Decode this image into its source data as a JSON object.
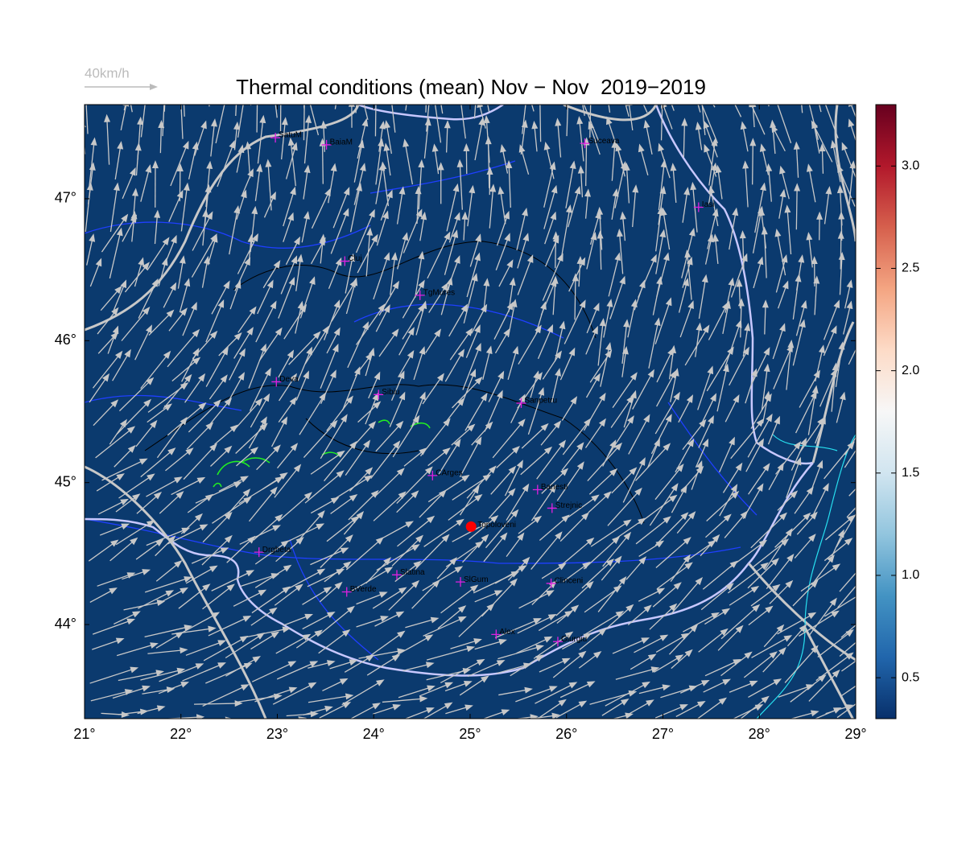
{
  "map": {
    "title": "Thermal conditions (mean) Nov − Nov  2019−2019",
    "legend_arrow_label": "40km/h",
    "xlim": [
      21,
      29
    ],
    "ylim": [
      43.337,
      47.663
    ],
    "xticks": [
      {
        "value": 21,
        "label": "21°"
      },
      {
        "value": 22,
        "label": "22°"
      },
      {
        "value": 23,
        "label": "23°"
      },
      {
        "value": 24,
        "label": "24°"
      },
      {
        "value": 25,
        "label": "25°"
      },
      {
        "value": 26,
        "label": "26°"
      },
      {
        "value": 27,
        "label": "27°"
      },
      {
        "value": 28,
        "label": "28°"
      },
      {
        "value": 29,
        "label": "29°"
      }
    ],
    "yticks": [
      {
        "value": 44,
        "label": "44°"
      },
      {
        "value": 45,
        "label": "45°"
      },
      {
        "value": 46,
        "label": "46°"
      },
      {
        "value": 47,
        "label": "47°"
      }
    ],
    "colorbar": {
      "lim": [
        0.3,
        3.3
      ],
      "ticks": [
        0.5,
        {
          "value": 1,
          "label": "1.0"
        },
        1.5,
        {
          "value": 2,
          "label": "2.0"
        },
        2.5,
        {
          "value": 3,
          "label": "3.0"
        }
      ],
      "colors": [
        "#08306b",
        "#2166ac",
        "#4393c3",
        "#92c5de",
        "#d1e5f0",
        "#f7f7f7",
        "#fddbc7",
        "#f4a582",
        "#d6604d",
        "#b2182b",
        "#67001f"
      ]
    },
    "cities": [
      {
        "name": "SatuM",
        "lon": 22.98,
        "lat": 47.43
      },
      {
        "name": "BaiaM",
        "lon": 23.51,
        "lat": 47.38
      },
      {
        "name": "Suceava",
        "lon": 26.19,
        "lat": 47.39
      },
      {
        "name": "Iasi",
        "lon": 27.37,
        "lat": 46.94
      },
      {
        "name": "Cluj",
        "lon": 23.7,
        "lat": 46.56
      },
      {
        "name": "TgMures",
        "lon": 24.48,
        "lat": 46.32
      },
      {
        "name": "Deva",
        "lon": 22.99,
        "lat": 45.71
      },
      {
        "name": "Sibiu",
        "lon": 24.05,
        "lat": 45.62
      },
      {
        "name": "Sanpetru",
        "lon": 25.53,
        "lat": 45.56
      },
      {
        "name": "CArges",
        "lon": 24.61,
        "lat": 45.05
      },
      {
        "name": "Banesti",
        "lon": 25.7,
        "lat": 44.95
      },
      {
        "name": "Strejnic",
        "lon": 25.85,
        "lat": 44.82
      },
      {
        "name": "Drgbeta",
        "lon": 22.81,
        "lat": 44.51
      },
      {
        "name": "Slatina",
        "lon": 24.24,
        "lat": 44.35
      },
      {
        "name": "SlGum",
        "lon": 24.9,
        "lat": 44.3
      },
      {
        "name": "Clinceni",
        "lon": 25.84,
        "lat": 44.29
      },
      {
        "name": "BVerde",
        "lon": 23.72,
        "lat": 44.23
      },
      {
        "name": "Alex",
        "lon": 25.27,
        "lat": 43.93
      },
      {
        "name": "Giurgiu",
        "lon": 25.91,
        "lat": 43.88
      }
    ],
    "highlight": {
      "name": "Topoloveni",
      "lon": 25.01,
      "lat": 44.69,
      "color": "#ff0000"
    }
  }
}
